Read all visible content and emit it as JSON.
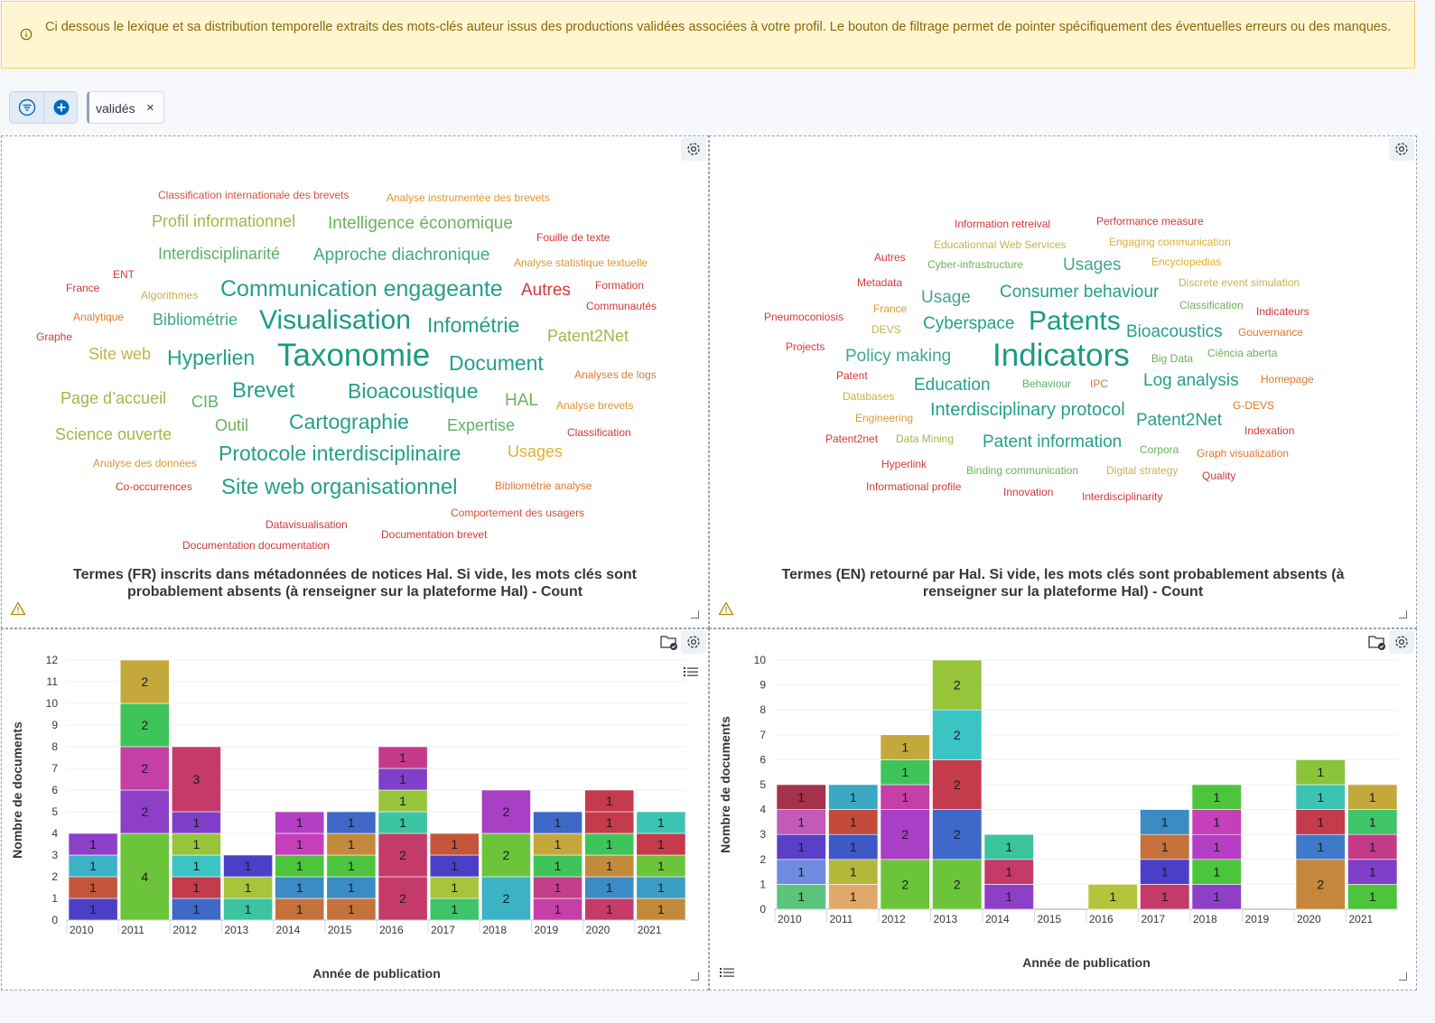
{
  "callout": {
    "text": "Ci dessous le lexique et sa distribution temporelle extraits des mots-clés auteur issus des productions validées associées à votre profil. Le bouton de filtrage permet de pointer spécifiquement des éventuelles erreurs ou des manques."
  },
  "filter": {
    "pill_label": "validés",
    "remove_glyph": "×"
  },
  "colors": {
    "accent": "#006bb8",
    "warning": "#8a6a0a"
  },
  "wordcloud_fr": {
    "title": "Termes (FR) inscrits dans métadonnées de notices Hal. Si vide, les mots clés sont probablement absents (à renseigner sur la plateforme Hal) - Count",
    "words": [
      {
        "t": "Classification internationale des brevets",
        "c": "#d4513a"
      },
      {
        "t": "Analyse instrumentée des brevets",
        "c": "#e0962f"
      },
      {
        "t": "Profil informationnel",
        "c": "#a9b34a"
      },
      {
        "t": "Intelligence économique",
        "c": "#6bb25b"
      },
      {
        "t": "Fouille de texte",
        "c": "#d4383a"
      },
      {
        "t": "Interdisciplinarité",
        "c": "#5faf6a"
      },
      {
        "t": "Approche diachronique",
        "c": "#3fa88a"
      },
      {
        "t": "Analyse statistique textuelle",
        "c": "#e0962f"
      },
      {
        "t": "ENT",
        "c": "#d4383a"
      },
      {
        "t": "France",
        "c": "#d4383a"
      },
      {
        "t": "Algorithmes",
        "c": "#c2b54a"
      },
      {
        "t": "Communication engageante",
        "c": "#24a08a"
      },
      {
        "t": "Autres",
        "c": "#d4383a"
      },
      {
        "t": "Formation",
        "c": "#d4383a"
      },
      {
        "t": "Communautés",
        "c": "#d4383a"
      },
      {
        "t": "Analytique",
        "c": "#e07a2f"
      },
      {
        "t": "Bibliométrie",
        "c": "#3fa88a"
      },
      {
        "t": "Visualisation",
        "c": "#1b9a84"
      },
      {
        "t": "Infométrie",
        "c": "#24a08a"
      },
      {
        "t": "Graphe",
        "c": "#d4383a"
      },
      {
        "t": "Patent2Net",
        "c": "#a9b34a"
      },
      {
        "t": "Site web",
        "c": "#c2b54a"
      },
      {
        "t": "Hyperlien",
        "c": "#24a08a"
      },
      {
        "t": "Taxonomie",
        "c": "#1b9a84"
      },
      {
        "t": "Document",
        "c": "#24a08a"
      },
      {
        "t": "Analyses de logs",
        "c": "#e07a2f"
      },
      {
        "t": "Page d’accueil",
        "c": "#a9b34a"
      },
      {
        "t": "CIB",
        "c": "#5faf6a"
      },
      {
        "t": "Brevet",
        "c": "#24a08a"
      },
      {
        "t": "Bioacoustique",
        "c": "#24a08a"
      },
      {
        "t": "HAL",
        "c": "#6bb25b"
      },
      {
        "t": "Analyse brevets",
        "c": "#e0962f"
      },
      {
        "t": "Outil",
        "c": "#6bb25b"
      },
      {
        "t": "Cartographie",
        "c": "#24a08a"
      },
      {
        "t": "Expertise",
        "c": "#5faf6a"
      },
      {
        "t": "Science ouverte",
        "c": "#a9b34a"
      },
      {
        "t": "Classification",
        "c": "#d4383a"
      },
      {
        "t": "Usages",
        "c": "#e0b02f"
      },
      {
        "t": "Protocole interdisciplinaire",
        "c": "#24a08a"
      },
      {
        "t": "Analyse des données",
        "c": "#e0962f"
      },
      {
        "t": "Co-occurrences",
        "c": "#d4383a"
      },
      {
        "t": "Site web organisationnel",
        "c": "#24a08a"
      },
      {
        "t": "Bibliométrie analyse",
        "c": "#e0762f"
      },
      {
        "t": "Comportement des usagers",
        "c": "#d4513a"
      },
      {
        "t": "Datavisualisation",
        "c": "#d4383a"
      },
      {
        "t": "Documentation brevet",
        "c": "#d4383a"
      },
      {
        "t": "Documentation documentation",
        "c": "#d4383a"
      }
    ]
  },
  "wordcloud_en": {
    "title": "Termes (EN) retourné par Hal. Si vide, les mots clés sont probablement absents (à renseigner sur la plateforme Hal) - Count",
    "words": [
      {
        "t": "Information retreival",
        "c": "#d4383a"
      },
      {
        "t": "Performance measure",
        "c": "#d4383a"
      },
      {
        "t": "Educationnal Web Services",
        "c": "#c2b54a"
      },
      {
        "t": "Engaging communication",
        "c": "#e0b02f"
      },
      {
        "t": "Autres",
        "c": "#d4383a"
      },
      {
        "t": "Cyber-infrastructure",
        "c": "#6bb25b"
      },
      {
        "t": "Usages",
        "c": "#3fa88a"
      },
      {
        "t": "Encyclopedias",
        "c": "#e0b02f"
      },
      {
        "t": "Metadata",
        "c": "#d4383a"
      },
      {
        "t": "Discrete event simulation",
        "c": "#c2b54a"
      },
      {
        "t": "Usage",
        "c": "#3fa88a"
      },
      {
        "t": "Consumer behaviour",
        "c": "#24a08a"
      },
      {
        "t": "France",
        "c": "#e0962f"
      },
      {
        "t": "Classification",
        "c": "#6bb25b"
      },
      {
        "t": "Indicateurs",
        "c": "#d4383a"
      },
      {
        "t": "Pneumoconiosis",
        "c": "#d4383a"
      },
      {
        "t": "DEVS",
        "c": "#c2b54a"
      },
      {
        "t": "Cyberspace",
        "c": "#24a08a"
      },
      {
        "t": "Patents",
        "c": "#1b9a84"
      },
      {
        "t": "Bioacoustics",
        "c": "#24a08a"
      },
      {
        "t": "Gouvernance",
        "c": "#e0762f"
      },
      {
        "t": "Projects",
        "c": "#d4383a"
      },
      {
        "t": "Policy making",
        "c": "#3fa88a"
      },
      {
        "t": "Indicators",
        "c": "#1b9a84"
      },
      {
        "t": "Big Data",
        "c": "#6bb25b"
      },
      {
        "t": "Ciência aberta",
        "c": "#6bb25b"
      },
      {
        "t": "Patent",
        "c": "#d4383a"
      },
      {
        "t": "Homepage",
        "c": "#e0762f"
      },
      {
        "t": "Log analysis",
        "c": "#24a08a"
      },
      {
        "t": "Databases",
        "c": "#c2b54a"
      },
      {
        "t": "Education",
        "c": "#24a08a"
      },
      {
        "t": "Behaviour",
        "c": "#5faf6a"
      },
      {
        "t": "IPC",
        "c": "#e0762f"
      },
      {
        "t": "G-DEVS",
        "c": "#e0762f"
      },
      {
        "t": "Engineering",
        "c": "#e0962f"
      },
      {
        "t": "Interdisciplinary protocol",
        "c": "#24a08a"
      },
      {
        "t": "Patent2Net",
        "c": "#24a08a"
      },
      {
        "t": "Indexation",
        "c": "#d4383a"
      },
      {
        "t": "Patent2net",
        "c": "#d4383a"
      },
      {
        "t": "Data Mining",
        "c": "#a9b34a"
      },
      {
        "t": "Patent information",
        "c": "#24a08a"
      },
      {
        "t": "Corpora",
        "c": "#6bb25b"
      },
      {
        "t": "Graph visualization",
        "c": "#e0762f"
      },
      {
        "t": "Hyperlink",
        "c": "#d4383a"
      },
      {
        "t": "Binding communication",
        "c": "#6bb25b"
      },
      {
        "t": "Digital strategy",
        "c": "#c2b54a"
      },
      {
        "t": "Quality",
        "c": "#d4383a"
      },
      {
        "t": "Informational profile",
        "c": "#d4383a"
      },
      {
        "t": "Innovation",
        "c": "#d4383a"
      },
      {
        "t": "Interdisciplinarity",
        "c": "#d4383a"
      }
    ]
  },
  "chart_data": [
    {
      "type": "bar",
      "stacked": true,
      "xlabel": "Année de publication",
      "ylabel": "Nombre de documents",
      "ylim": [
        0,
        12
      ],
      "yticks": [
        0,
        1,
        2,
        3,
        4,
        5,
        6,
        7,
        8,
        9,
        10,
        11,
        12
      ],
      "categories": [
        "2010",
        "2011",
        "2012",
        "2013",
        "2014",
        "2015",
        "2016",
        "2017",
        "2018",
        "2019",
        "2020",
        "2021"
      ],
      "stacks": [
        [
          {
            "v": 1,
            "c": "#4b3fc8"
          },
          {
            "v": 1,
            "c": "#c4553b"
          },
          {
            "v": 1,
            "c": "#3cb3c4"
          },
          {
            "v": 1,
            "c": "#8e3fc8"
          }
        ],
        [
          {
            "v": 4,
            "c": "#6cc43b"
          },
          {
            "v": 2,
            "c": "#8e3fc8"
          },
          {
            "v": 2,
            "c": "#c43fa6"
          },
          {
            "v": 2,
            "c": "#3fc45a"
          },
          {
            "v": 2,
            "c": "#c4a83b"
          }
        ],
        [
          {
            "v": 1,
            "c": "#3f68c8"
          },
          {
            "v": 1,
            "c": "#c43b4b"
          },
          {
            "v": 1,
            "c": "#3bc4c4"
          },
          {
            "v": 1,
            "c": "#96c43b"
          },
          {
            "v": 1,
            "c": "#7f3fc8"
          },
          {
            "v": 3,
            "c": "#c43b6a"
          }
        ],
        [
          {
            "v": 1,
            "c": "#3bc49e"
          },
          {
            "v": 1,
            "c": "#a8c43b"
          },
          {
            "v": 1,
            "c": "#4b3fc8"
          }
        ],
        [
          {
            "v": 1,
            "c": "#c4713b"
          },
          {
            "v": 1,
            "c": "#3b8bc4"
          },
          {
            "v": 1,
            "c": "#4cc43b"
          },
          {
            "v": 1,
            "c": "#c43fb8"
          },
          {
            "v": 1,
            "c": "#b43fc4"
          }
        ],
        [
          {
            "v": 1,
            "c": "#c4713b"
          },
          {
            "v": 1,
            "c": "#3b8bc4"
          },
          {
            "v": 1,
            "c": "#4cc43b"
          },
          {
            "v": 1,
            "c": "#c48a3b"
          },
          {
            "v": 1,
            "c": "#3f68c8"
          }
        ],
        [
          {
            "v": 2,
            "c": "#c43b6a"
          },
          {
            "v": 2,
            "c": "#c43b6a"
          },
          {
            "v": 1,
            "c": "#3bc4a0"
          },
          {
            "v": 1,
            "c": "#96c43b"
          },
          {
            "v": 1,
            "c": "#7f3fc8"
          },
          {
            "v": 1,
            "c": "#c43b8a"
          }
        ],
        [
          {
            "v": 1,
            "c": "#3fc46a"
          },
          {
            "v": 1,
            "c": "#a8c43b"
          },
          {
            "v": 1,
            "c": "#4b3fc8"
          },
          {
            "v": 1,
            "c": "#c4553b"
          }
        ],
        [
          {
            "v": 2,
            "c": "#3bb3c4"
          },
          {
            "v": 2,
            "c": "#6cc43b"
          },
          {
            "v": 2,
            "c": "#a83fc4"
          }
        ],
        [
          {
            "v": 1,
            "c": "#c43fa6"
          },
          {
            "v": 1,
            "c": "#c43f8a"
          },
          {
            "v": 1,
            "c": "#3fc45a"
          },
          {
            "v": 1,
            "c": "#c4a83b"
          },
          {
            "v": 1,
            "c": "#3f68c8"
          }
        ],
        [
          {
            "v": 1,
            "c": "#c43b6a"
          },
          {
            "v": 1,
            "c": "#3b8bc4"
          },
          {
            "v": 1,
            "c": "#c48a3b"
          },
          {
            "v": 1,
            "c": "#3fc45a"
          },
          {
            "v": 1,
            "c": "#c43b4b"
          },
          {
            "v": 1,
            "c": "#c43b4b"
          }
        ],
        [
          {
            "v": 1,
            "c": "#c48a3b"
          },
          {
            "v": 1,
            "c": "#3b9ec4"
          },
          {
            "v": 1,
            "c": "#6cc43b"
          },
          {
            "v": 1,
            "c": "#c43b4b"
          },
          {
            "v": 1,
            "c": "#3bc4b3"
          }
        ]
      ]
    },
    {
      "type": "bar",
      "stacked": true,
      "xlabel": "Année de publication",
      "ylabel": "Nombre de documents",
      "ylim": [
        0,
        10
      ],
      "yticks": [
        0,
        1,
        2,
        3,
        4,
        5,
        6,
        7,
        8,
        9,
        10
      ],
      "categories": [
        "2010",
        "2011",
        "2012",
        "2013",
        "2014",
        "2015",
        "2016",
        "2017",
        "2018",
        "2019",
        "2020",
        "2021"
      ],
      "stacks": [
        [
          {
            "v": 1,
            "c": "#5ac47a"
          },
          {
            "v": 1,
            "c": "#6f8be0"
          },
          {
            "v": 1,
            "c": "#5a3fc8"
          },
          {
            "v": 1,
            "c": "#c45ab8"
          },
          {
            "v": 1,
            "c": "#a3324a"
          }
        ],
        [
          {
            "v": 1,
            "c": "#e0a86a"
          },
          {
            "v": 1,
            "c": "#b3b83b"
          },
          {
            "v": 1,
            "c": "#3f58c8"
          },
          {
            "v": 1,
            "c": "#c44b3b"
          },
          {
            "v": 1,
            "c": "#3ba8c4"
          }
        ],
        [
          {
            "v": 2,
            "c": "#6cc43b"
          },
          {
            "v": 2,
            "c": "#a83fc4"
          },
          {
            "v": 1,
            "c": "#c43fa6"
          },
          {
            "v": 1,
            "c": "#3fc45a"
          },
          {
            "v": 1,
            "c": "#c4a83b"
          }
        ],
        [
          {
            "v": 2,
            "c": "#6cc43b"
          },
          {
            "v": 2,
            "c": "#3f68c8"
          },
          {
            "v": 2,
            "c": "#c43b4b"
          },
          {
            "v": 2,
            "c": "#3bc4c4"
          },
          {
            "v": 2,
            "c": "#96c43b"
          }
        ],
        [
          {
            "v": 1,
            "c": "#8e3fc8"
          },
          {
            "v": 1,
            "c": "#c43b6a"
          },
          {
            "v": 1,
            "c": "#3bc49e"
          }
        ],
        [],
        [
          {
            "v": 1,
            "c": "#b3c43b"
          }
        ],
        [
          {
            "v": 1,
            "c": "#c43b6a"
          },
          {
            "v": 1,
            "c": "#4b3fc8"
          },
          {
            "v": 1,
            "c": "#c4713b"
          },
          {
            "v": 1,
            "c": "#3b8bc4"
          }
        ],
        [
          {
            "v": 1,
            "c": "#8e3fc8"
          },
          {
            "v": 1,
            "c": "#4cc43b"
          },
          {
            "v": 1,
            "c": "#b43fc4"
          },
          {
            "v": 1,
            "c": "#c43fb8"
          },
          {
            "v": 1,
            "c": "#4cc43b"
          }
        ],
        [],
        [
          {
            "v": 2,
            "c": "#c4873b"
          },
          {
            "v": 1,
            "c": "#3f7ac8"
          },
          {
            "v": 1,
            "c": "#c43b4b"
          },
          {
            "v": 1,
            "c": "#3bc4b3"
          },
          {
            "v": 1,
            "c": "#8ac43b"
          }
        ],
        [
          {
            "v": 1,
            "c": "#4cc43b"
          },
          {
            "v": 1,
            "c": "#7f3fc8"
          },
          {
            "v": 1,
            "c": "#c43b8a"
          },
          {
            "v": 1,
            "c": "#3fc46a"
          },
          {
            "v": 1,
            "c": "#c4a83b"
          }
        ]
      ]
    }
  ]
}
